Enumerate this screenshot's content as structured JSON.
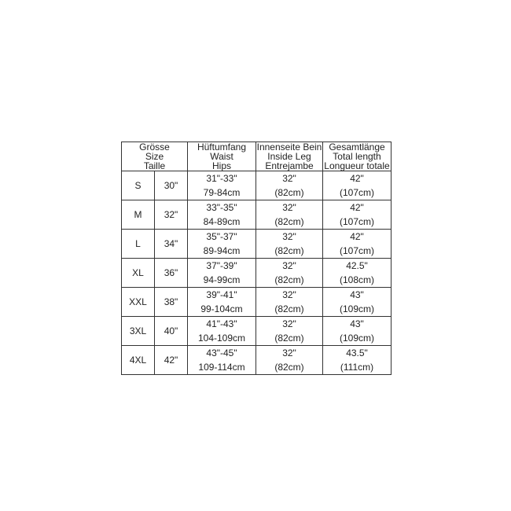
{
  "headers": [
    [
      "Grösse",
      "Size",
      "Taille"
    ],
    [
      "Hüftumfang",
      "Waist",
      "Hips"
    ],
    [
      "Innenseite Bein",
      "Inside Leg",
      "Entrejambe"
    ],
    [
      "Gesamtlänge",
      "Total length",
      "Longueur totale"
    ]
  ],
  "rows": [
    {
      "size": "S",
      "taille": "30\"",
      "waist": [
        "31\"-33\"",
        "79-84cm"
      ],
      "leg": [
        "32\"",
        "(82cm)"
      ],
      "length": [
        "42\"",
        "(107cm)"
      ]
    },
    {
      "size": "M",
      "taille": "32\"",
      "waist": [
        "33\"-35\"",
        "84-89cm"
      ],
      "leg": [
        "32\"",
        "(82cm)"
      ],
      "length": [
        "42\"",
        "(107cm)"
      ]
    },
    {
      "size": "L",
      "taille": "34\"",
      "waist": [
        "35\"-37\"",
        "89-94cm"
      ],
      "leg": [
        "32\"",
        "(82cm)"
      ],
      "length": [
        "42\"",
        "(107cm)"
      ]
    },
    {
      "size": "XL",
      "taille": "36\"",
      "waist": [
        "37\"-39\"",
        "94-99cm"
      ],
      "leg": [
        "32\"",
        "(82cm)"
      ],
      "length": [
        "42.5\"",
        "(108cm)"
      ]
    },
    {
      "size": "XXL",
      "taille": "38\"",
      "waist": [
        "39\"-41\"",
        "99-104cm"
      ],
      "leg": [
        "32\"",
        "(82cm)"
      ],
      "length": [
        "43\"",
        "(109cm)"
      ]
    },
    {
      "size": "3XL",
      "taille": "40\"",
      "waist": [
        "41\"-43\"",
        "104-109cm"
      ],
      "leg": [
        "32\"",
        "(82cm)"
      ],
      "length": [
        "43\"",
        "(109cm)"
      ]
    },
    {
      "size": "4XL",
      "taille": "42\"",
      "waist": [
        "43\"-45\"",
        "109-114cm"
      ],
      "leg": [
        "32\"",
        "(82cm)"
      ],
      "length": [
        "43.5\"",
        "(111cm)"
      ]
    }
  ]
}
